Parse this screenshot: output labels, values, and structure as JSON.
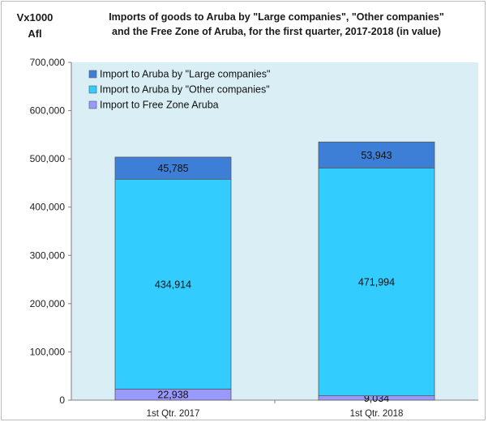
{
  "chart_data": {
    "type": "bar",
    "stacked": true,
    "title_line1": "Imports of goods to Aruba by \"Large companies\", \"Other companies\"",
    "title_line2": "and the Free Zone of Aruba, for the first quarter, 2017-2018 (in value)",
    "ylabel_line1": "Vx1000",
    "ylabel_line2": "Afl",
    "xlabel": "",
    "ylim": [
      0,
      700000
    ],
    "yticks": [
      0,
      100000,
      200000,
      300000,
      400000,
      500000,
      600000,
      700000
    ],
    "ytick_labels": [
      "0",
      "100,000",
      "200,000",
      "300,000",
      "400,000",
      "500,000",
      "600,000",
      "700,000"
    ],
    "categories": [
      "1st Qtr. 2017",
      "1st Qtr. 2018"
    ],
    "series": [
      {
        "name": "Import to Free Zone Aruba",
        "values": [
          22938,
          9034
        ],
        "labels": [
          "22,938",
          "9,034"
        ],
        "color": "#9999ff"
      },
      {
        "name": "Import to Aruba by \"Other companies\"",
        "values": [
          434914,
          471994
        ],
        "labels": [
          "434,914",
          "471,994"
        ],
        "color": "#33ccff"
      },
      {
        "name": "Import to Aruba by \"Large companies\"",
        "values": [
          45785,
          53943
        ],
        "labels": [
          "45,785",
          "53,943"
        ],
        "color": "#3d7fd6"
      }
    ],
    "legend_order": [
      2,
      1,
      0
    ],
    "legend_placement": "top-left",
    "grid": false,
    "plot_background": "#d9eef5"
  }
}
